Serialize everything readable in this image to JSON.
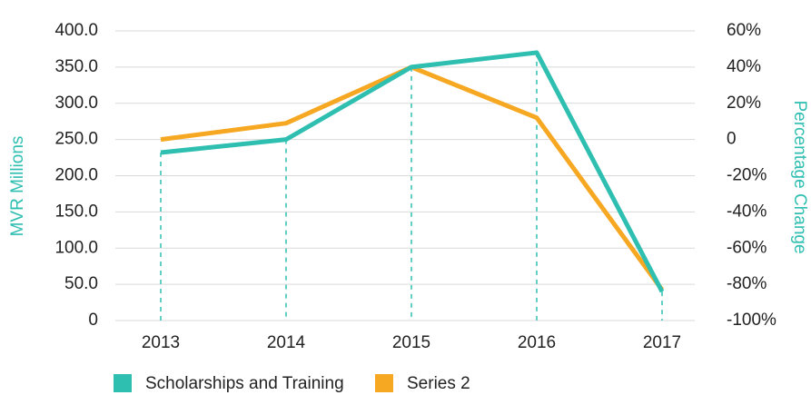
{
  "chart_data": {
    "type": "line",
    "categories": [
      "2013",
      "2014",
      "2015",
      "2016",
      "2017"
    ],
    "series": [
      {
        "name": "Scholarships and Training",
        "color": "#2ebfb1",
        "values": [
          232,
          250,
          350,
          370,
          40
        ]
      },
      {
        "name": "Series 2",
        "color": "#f7a823",
        "axis": "y2",
        "values": [
          0,
          9,
          40,
          12,
          -83
        ]
      }
    ],
    "ylabel": "MVR Millions",
    "y2label": "Percentage Change",
    "ylim": [
      0,
      400
    ],
    "yticks": [
      0,
      {
        "value": 50,
        "label": "50.0"
      },
      {
        "value": 100,
        "label": "100.0"
      },
      {
        "value": 150,
        "label": "150.0"
      },
      {
        "value": 200,
        "label": "200.0"
      },
      {
        "value": 250,
        "label": "250.0"
      },
      {
        "value": 300,
        "label": "300.0"
      },
      {
        "value": 350,
        "label": "350.0"
      },
      {
        "value": 400,
        "label": "400.0"
      }
    ],
    "y2lim": [
      -100,
      60
    ],
    "y2ticks": [
      {
        "value": -100,
        "label": "-100%"
      },
      {
        "value": -80,
        "label": "-80%"
      },
      {
        "value": -60,
        "label": "-60%"
      },
      {
        "value": -40,
        "label": "-40%"
      },
      {
        "value": -20,
        "label": "-20%"
      },
      0,
      {
        "value": 20,
        "label": "20%"
      },
      {
        "value": 40,
        "label": "40%"
      },
      {
        "value": 60,
        "label": "60%"
      }
    ],
    "grid": true,
    "legend": "bottom-left"
  }
}
